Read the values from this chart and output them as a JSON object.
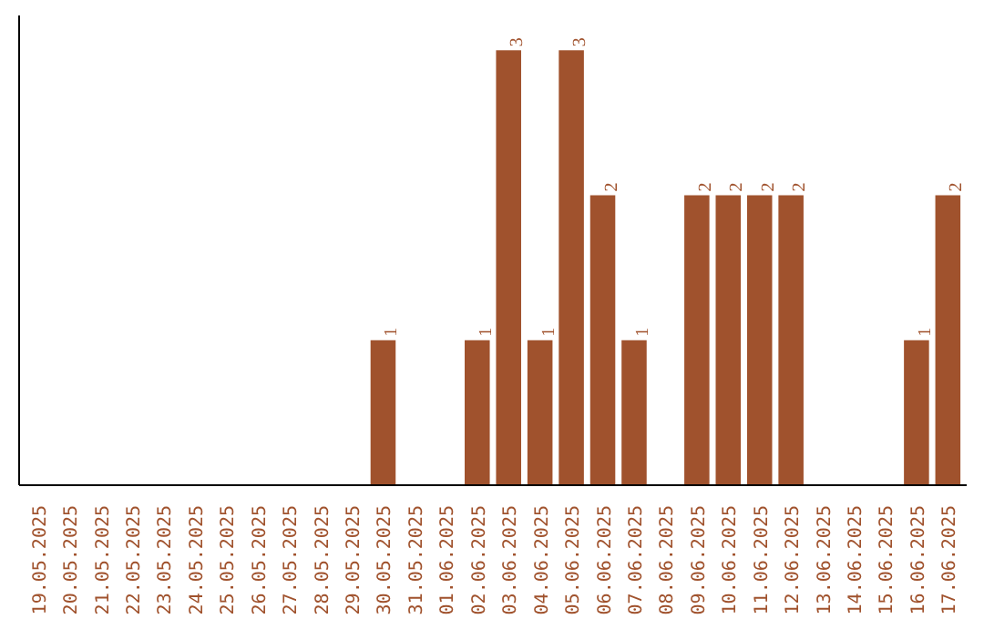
{
  "chart_data": {
    "type": "bar",
    "categories": [
      "19.05.2025",
      "20.05.2025",
      "21.05.2025",
      "22.05.2025",
      "23.05.2025",
      "24.05.2025",
      "25.05.2025",
      "26.05.2025",
      "27.05.2025",
      "28.05.2025",
      "29.05.2025",
      "30.05.2025",
      "31.05.2025",
      "01.06.2025",
      "02.06.2025",
      "03.06.2025",
      "04.06.2025",
      "05.06.2025",
      "06.06.2025",
      "07.06.2025",
      "08.06.2025",
      "09.06.2025",
      "10.06.2025",
      "11.06.2025",
      "12.06.2025",
      "13.06.2025",
      "14.06.2025",
      "15.06.2025",
      "16.06.2025",
      "17.06.2025"
    ],
    "values": [
      0,
      0,
      0,
      0,
      0,
      0,
      0,
      0,
      0,
      0,
      0,
      1,
      0,
      0,
      1,
      3,
      1,
      3,
      2,
      1,
      0,
      2,
      2,
      2,
      2,
      0,
      0,
      0,
      1,
      2
    ],
    "value_labels": [
      null,
      null,
      null,
      null,
      null,
      null,
      null,
      null,
      null,
      null,
      null,
      "1",
      null,
      null,
      "1",
      "3",
      "1",
      "3",
      "2",
      "1",
      null,
      "2",
      "2",
      "2",
      "2",
      null,
      null,
      null,
      "1",
      "2"
    ],
    "color": "#a0522d",
    "tick_labels": "x",
    "grid": false
  }
}
